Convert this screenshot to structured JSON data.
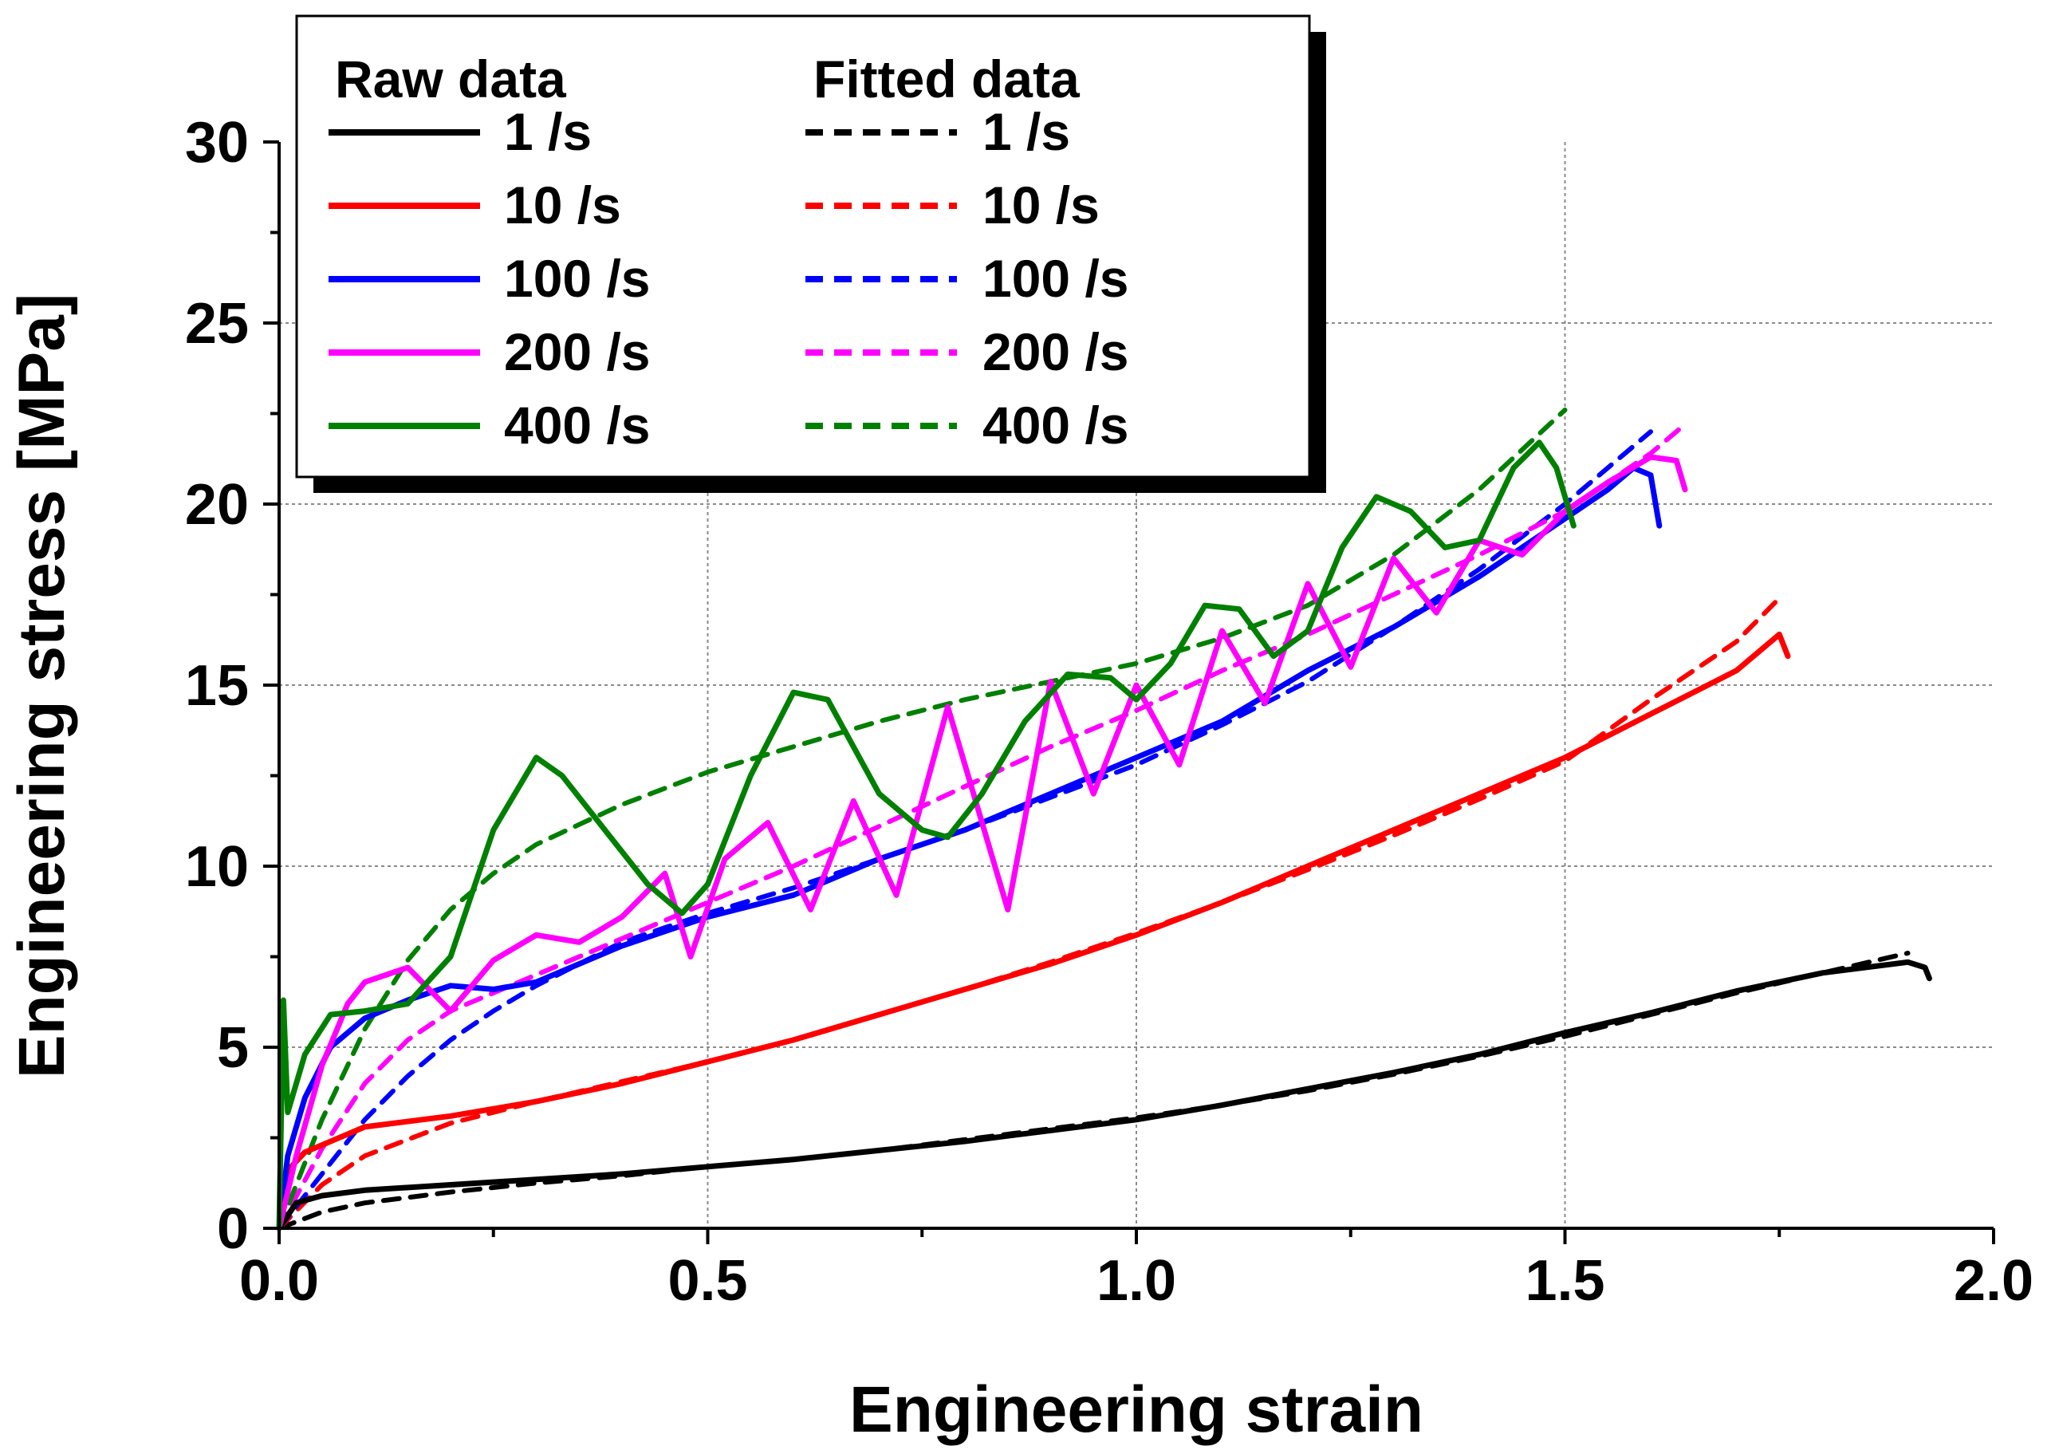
{
  "chart_data": {
    "type": "line",
    "title": "",
    "xlabel": "Engineering strain",
    "ylabel": "Engineering stress [MPa]",
    "xlim": [
      0.0,
      2.0
    ],
    "ylim": [
      0,
      30
    ],
    "x_ticks": [
      0.0,
      0.5,
      1.0,
      1.5,
      2.0
    ],
    "x_tick_labels": [
      "0.0",
      "0.5",
      "1.0",
      "1.5",
      "2.0"
    ],
    "y_ticks": [
      0,
      5,
      10,
      15,
      20,
      25,
      30
    ],
    "y_tick_labels": [
      "0",
      "5",
      "10",
      "15",
      "20",
      "25",
      "30"
    ],
    "grid": "dotted at major ticks (right/upper region)",
    "legend": {
      "position": "top-left",
      "raw_header": "Raw data",
      "fitted_header": "Fitted data",
      "entries": [
        "1 /s",
        "10 /s",
        "100 /s",
        "200 /s",
        "400 /s"
      ]
    },
    "series": [
      {
        "name": "1 /s",
        "kind": "raw",
        "color": "#000000",
        "x": [
          0,
          0.02,
          0.05,
          0.1,
          0.2,
          0.3,
          0.4,
          0.5,
          0.6,
          0.7,
          0.8,
          0.9,
          1.0,
          1.1,
          1.2,
          1.3,
          1.4,
          1.5,
          1.6,
          1.7,
          1.8,
          1.9,
          1.92,
          1.925
        ],
        "y": [
          0,
          0.7,
          0.9,
          1.05,
          1.2,
          1.35,
          1.5,
          1.7,
          1.9,
          2.15,
          2.4,
          2.7,
          3.0,
          3.4,
          3.85,
          4.3,
          4.8,
          5.4,
          5.95,
          6.55,
          7.05,
          7.35,
          7.2,
          6.9
        ]
      },
      {
        "name": "1 /s",
        "kind": "fitted",
        "color": "#000000",
        "x": [
          0,
          0.05,
          0.1,
          0.2,
          0.3,
          0.4,
          0.5,
          0.6,
          0.7,
          0.8,
          0.9,
          1.0,
          1.1,
          1.2,
          1.3,
          1.4,
          1.5,
          1.6,
          1.7,
          1.8,
          1.9
        ],
        "y": [
          0,
          0.45,
          0.7,
          1.0,
          1.25,
          1.45,
          1.7,
          1.9,
          2.15,
          2.45,
          2.75,
          3.05,
          3.4,
          3.8,
          4.25,
          4.75,
          5.3,
          5.9,
          6.5,
          7.05,
          7.6
        ]
      },
      {
        "name": "10 /s",
        "kind": "raw",
        "color": "#ff0000",
        "x": [
          0,
          0.01,
          0.03,
          0.1,
          0.2,
          0.3,
          0.4,
          0.5,
          0.6,
          0.7,
          0.8,
          0.9,
          1.0,
          1.1,
          1.2,
          1.3,
          1.4,
          1.5,
          1.6,
          1.7,
          1.75,
          1.76
        ],
        "y": [
          0,
          1.6,
          2.1,
          2.8,
          3.1,
          3.5,
          4.0,
          4.6,
          5.2,
          5.9,
          6.6,
          7.3,
          8.1,
          9.0,
          10.0,
          11.0,
          12.0,
          13.0,
          14.2,
          15.4,
          16.4,
          15.8
        ]
      },
      {
        "name": "10 /s",
        "kind": "fitted",
        "color": "#ff0000",
        "x": [
          0,
          0.05,
          0.1,
          0.2,
          0.3,
          0.4,
          0.5,
          0.6,
          0.7,
          0.8,
          0.9,
          1.0,
          1.1,
          1.2,
          1.3,
          1.4,
          1.5,
          1.6,
          1.7,
          1.75
        ],
        "y": [
          0,
          1.2,
          2.0,
          2.9,
          3.5,
          4.05,
          4.6,
          5.2,
          5.9,
          6.6,
          7.35,
          8.15,
          9.0,
          9.9,
          10.85,
          11.85,
          12.9,
          14.6,
          16.2,
          17.4
        ]
      },
      {
        "name": "100 /s",
        "kind": "raw",
        "color": "#0000ff",
        "x": [
          0,
          0.01,
          0.03,
          0.06,
          0.1,
          0.15,
          0.2,
          0.25,
          0.3,
          0.4,
          0.5,
          0.6,
          0.7,
          0.8,
          0.9,
          1.0,
          1.1,
          1.2,
          1.3,
          1.4,
          1.5,
          1.55,
          1.58,
          1.6,
          1.61
        ],
        "y": [
          0,
          2.0,
          3.6,
          5.0,
          5.8,
          6.3,
          6.7,
          6.6,
          6.8,
          7.8,
          8.6,
          9.2,
          10.2,
          11.0,
          12.0,
          13.0,
          14.0,
          15.4,
          16.6,
          18.0,
          19.6,
          20.4,
          21.0,
          20.8,
          19.4
        ]
      },
      {
        "name": "100 /s",
        "kind": "fitted",
        "color": "#0000ff",
        "x": [
          0,
          0.05,
          0.1,
          0.15,
          0.2,
          0.25,
          0.3,
          0.4,
          0.5,
          0.6,
          0.7,
          0.8,
          0.9,
          1.0,
          1.1,
          1.2,
          1.3,
          1.4,
          1.5,
          1.6
        ],
        "y": [
          0,
          1.5,
          3.0,
          4.2,
          5.2,
          6.0,
          6.7,
          7.9,
          8.7,
          9.4,
          10.2,
          11.0,
          11.9,
          12.8,
          13.9,
          15.1,
          16.6,
          18.2,
          20.0,
          22.0
        ]
      },
      {
        "name": "200 /s",
        "kind": "raw",
        "color": "#ff00ff",
        "x": [
          0,
          0.02,
          0.05,
          0.08,
          0.1,
          0.15,
          0.2,
          0.25,
          0.3,
          0.35,
          0.4,
          0.45,
          0.48,
          0.52,
          0.57,
          0.62,
          0.67,
          0.72,
          0.78,
          0.85,
          0.9,
          0.95,
          1.0,
          1.05,
          1.1,
          1.15,
          1.2,
          1.25,
          1.3,
          1.35,
          1.4,
          1.45,
          1.5,
          1.55,
          1.6,
          1.63,
          1.64
        ],
        "y": [
          0,
          2.0,
          4.5,
          6.2,
          6.8,
          7.2,
          6.0,
          7.4,
          8.1,
          7.9,
          8.6,
          9.8,
          7.5,
          10.2,
          11.2,
          8.8,
          11.8,
          9.2,
          14.4,
          8.8,
          15.1,
          12.0,
          15.0,
          12.8,
          16.5,
          14.5,
          17.8,
          15.5,
          18.5,
          17.0,
          19.0,
          18.6,
          19.8,
          20.6,
          21.3,
          21.2,
          20.4
        ]
      },
      {
        "name": "200 /s",
        "kind": "fitted",
        "color": "#ff00ff",
        "x": [
          0,
          0.05,
          0.1,
          0.15,
          0.2,
          0.3,
          0.4,
          0.5,
          0.6,
          0.7,
          0.8,
          0.9,
          1.0,
          1.1,
          1.2,
          1.3,
          1.4,
          1.5,
          1.6,
          1.64
        ],
        "y": [
          0,
          2.2,
          4.0,
          5.2,
          6.0,
          7.0,
          8.0,
          9.0,
          10.0,
          11.1,
          12.2,
          13.3,
          14.3,
          15.4,
          16.4,
          17.5,
          18.6,
          19.8,
          21.4,
          22.2
        ]
      },
      {
        "name": "400 /s",
        "kind": "raw",
        "color": "#008000",
        "x": [
          0,
          0.005,
          0.01,
          0.03,
          0.06,
          0.1,
          0.15,
          0.2,
          0.25,
          0.3,
          0.33,
          0.38,
          0.43,
          0.47,
          0.5,
          0.55,
          0.6,
          0.64,
          0.7,
          0.75,
          0.78,
          0.82,
          0.87,
          0.92,
          0.97,
          1.0,
          1.04,
          1.08,
          1.12,
          1.16,
          1.2,
          1.24,
          1.28,
          1.32,
          1.36,
          1.4,
          1.44,
          1.47,
          1.49,
          1.51
        ],
        "y": [
          0,
          6.3,
          3.2,
          4.8,
          5.9,
          6.0,
          6.2,
          7.5,
          11.0,
          13.0,
          12.5,
          11.0,
          9.5,
          8.7,
          9.5,
          12.5,
          14.8,
          14.6,
          12.0,
          11.0,
          10.8,
          12.0,
          14.0,
          15.3,
          15.2,
          14.6,
          15.6,
          17.2,
          17.1,
          15.8,
          16.5,
          18.8,
          20.2,
          19.8,
          18.8,
          19.0,
          21.0,
          21.7,
          21.0,
          19.4
        ]
      },
      {
        "name": "400 /s",
        "kind": "fitted",
        "color": "#008000",
        "x": [
          0,
          0.05,
          0.1,
          0.15,
          0.2,
          0.25,
          0.3,
          0.4,
          0.5,
          0.6,
          0.7,
          0.8,
          0.9,
          1.0,
          1.1,
          1.2,
          1.3,
          1.4,
          1.5
        ],
        "y": [
          0,
          3.0,
          5.5,
          7.4,
          8.8,
          9.8,
          10.6,
          11.7,
          12.6,
          13.3,
          14.0,
          14.6,
          15.1,
          15.6,
          16.3,
          17.2,
          18.6,
          20.4,
          22.6
        ]
      }
    ]
  }
}
